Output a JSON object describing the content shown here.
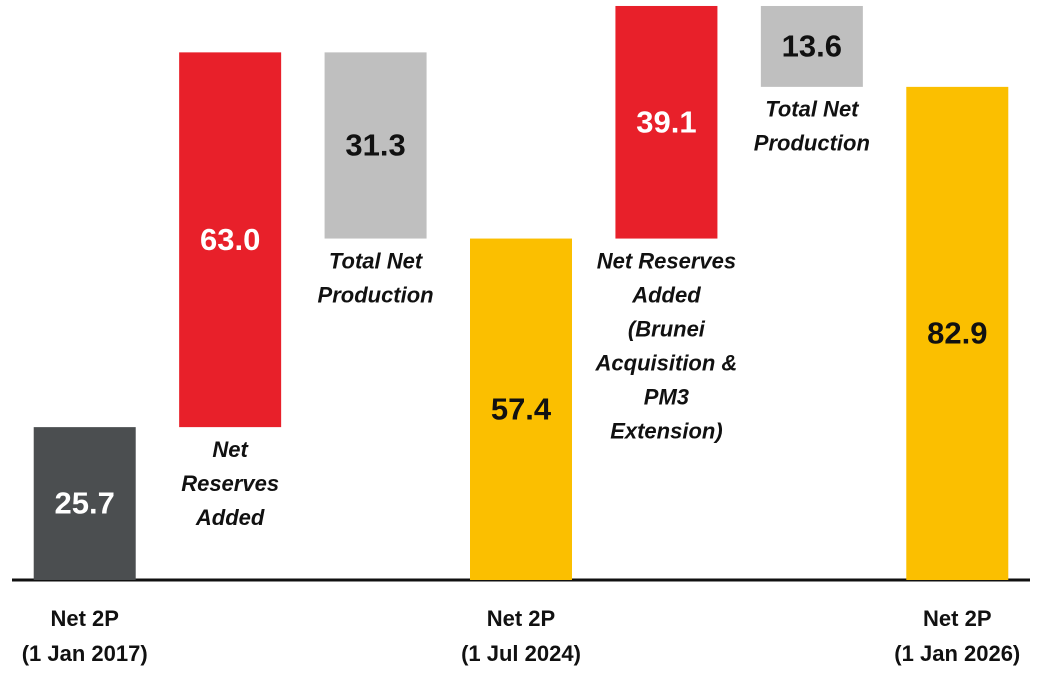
{
  "chart_data": {
    "type": "waterfall",
    "categories": [
      [
        "Net 2P",
        "(1 Jan 2017)"
      ],
      [
        "Net",
        "Reserves",
        "Added"
      ],
      [
        "Total Net",
        "Production"
      ],
      [
        "Net 2P",
        "(1 Jul 2024)"
      ],
      [
        "Net Reserves",
        "Added",
        "(Brunei",
        "Acquisition &",
        "PM3",
        "Extension)"
      ],
      [
        "Total Net",
        "Production"
      ],
      [
        "Net 2P",
        "(1 Jan 2026)"
      ]
    ],
    "measures": [
      "total",
      "relative",
      "relative",
      "total",
      "relative",
      "relative",
      "total"
    ],
    "values": [
      25.7,
      63.0,
      -31.3,
      57.4,
      39.1,
      -13.6,
      82.9
    ],
    "value_labels": [
      "25.7",
      "63.0",
      "31.3",
      "57.4",
      "39.1",
      "13.6",
      "82.9"
    ],
    "colors": [
      "#4b4e50",
      "#e8202a",
      "#bfbfbf",
      "#fbbf00",
      "#e8202a",
      "#bfbfbf",
      "#fbbf00"
    ],
    "label_colors": [
      "#ffffff",
      "#ffffff",
      "#111111",
      "#111111",
      "#ffffff",
      "#111111",
      "#111111"
    ],
    "ylim": [
      0,
      97
    ]
  }
}
